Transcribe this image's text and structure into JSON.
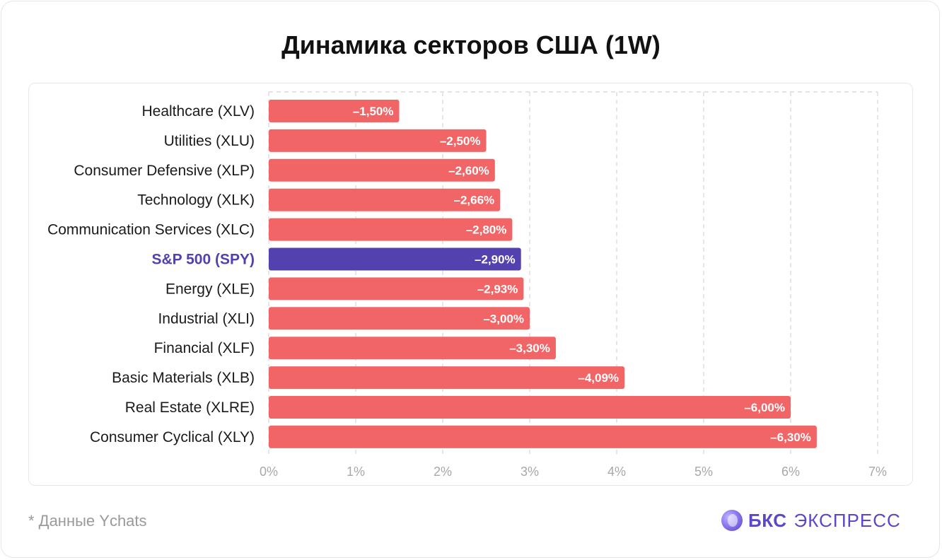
{
  "title": "Динамика секторов США (1W)",
  "footnote": "* Данные Ychats",
  "brand": {
    "name_bold": "БКС",
    "name_light": "ЭКСПРЕСС",
    "color": "#5a47c9"
  },
  "colors": {
    "bar": "#f26566",
    "highlight_bar": "#5341b0",
    "highlight_label": "#5341b0",
    "label": "#1a1a1a",
    "tick": "#a8a8a8",
    "grid": "#dcdcdc"
  },
  "chart_data": {
    "type": "bar",
    "orientation": "horizontal",
    "title": "Динамика секторов США (1W)",
    "xlim": [
      0,
      7
    ],
    "x_ticks": [
      "0%",
      "1%",
      "2%",
      "3%",
      "4%",
      "5%",
      "6%",
      "7%"
    ],
    "grid": true,
    "categories": [
      "Healthcare (XLV)",
      "Utilities (XLU)",
      "Consumer Defensive (XLP)",
      "Technology (XLK)",
      "Communication Services (XLC)",
      "S&P 500 (SPY)",
      "Energy (XLE)",
      "Industrial (XLI)",
      "Financial (XLF)",
      "Basic Materials (XLB)",
      "Real Estate (XLRE)",
      "Consumer Cyclical (XLY)"
    ],
    "values": [
      1.5,
      2.5,
      2.6,
      2.66,
      2.8,
      2.9,
      2.93,
      3.0,
      3.3,
      4.09,
      6.0,
      6.3
    ],
    "value_labels": [
      "–1,50%",
      "–2,50%",
      "–2,60%",
      "–2,66%",
      "–2,80%",
      "–2,90%",
      "–2,93%",
      "–3,00%",
      "–3,30%",
      "–4,09%",
      "–6,00%",
      "–6,30%"
    ],
    "highlight": "S&P 500 (SPY)"
  }
}
